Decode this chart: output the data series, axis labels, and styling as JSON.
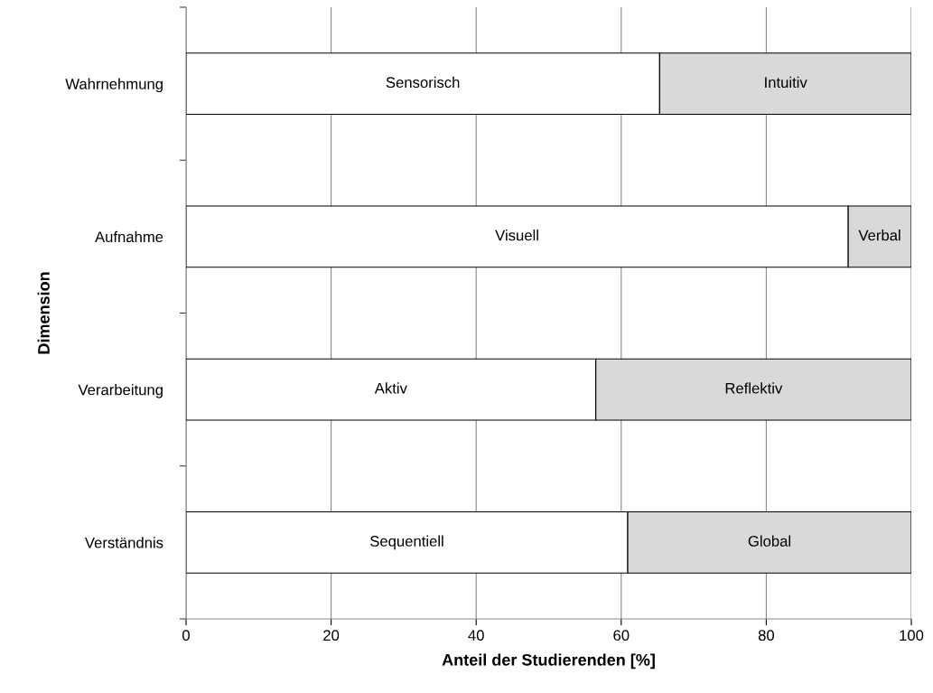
{
  "chart_data": {
    "type": "bar",
    "orientation": "horizontal",
    "stacked": true,
    "xlabel": "Anteil der Studierenden [%]",
    "ylabel": "Dimension",
    "categories": [
      "Wahrnehmung",
      "Aufnahme",
      "Verarbeitung",
      "Verständnis"
    ],
    "series": [
      {
        "color": "#ffffff",
        "values": [
          65.3,
          91.3,
          56.5,
          60.9
        ],
        "value_labels": [
          "Sensorisch",
          "Visuell",
          "Aktiv",
          "Sequentiell"
        ]
      },
      {
        "color": "#d9d9d9",
        "values": [
          34.7,
          8.7,
          43.5,
          39.1
        ],
        "value_labels": [
          "Intuitiv",
          "Verbal",
          "Reflektiv",
          "Global"
        ]
      }
    ],
    "xlim": [
      0,
      100
    ],
    "xticks": [
      0,
      20,
      40,
      60,
      80,
      100
    ],
    "grid": "x",
    "legend": false
  }
}
